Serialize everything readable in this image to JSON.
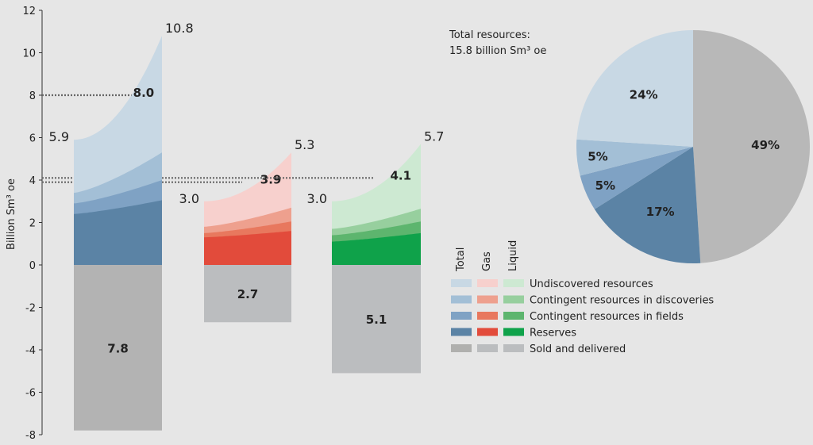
{
  "chart_data": [
    {
      "type": "area",
      "ylabel": "Billion Sm³ oe",
      "ylim": [
        -8,
        12
      ],
      "yticks": [
        12,
        10,
        8,
        6,
        4,
        2,
        0,
        -2,
        -4,
        -6,
        -8
      ],
      "grid": false,
      "groups": [
        {
          "name": "Total",
          "layers": [
            {
              "name": "Reserves",
              "start": 2.4,
              "end": 3.05,
              "color": "#5b83a5"
            },
            {
              "name": "Contingent resources in fields",
              "start": 2.9,
              "end": 4.0,
              "color": "#7fa2c4"
            },
            {
              "name": "Contingent resources in discoveries",
              "start": 3.4,
              "end": 5.3,
              "color": "#a3bfd6"
            },
            {
              "name": "Undiscovered resources",
              "start": 5.9,
              "end": 10.8,
              "color": "#c8d8e4"
            }
          ],
          "sold": {
            "name": "Sold and delivered",
            "value": -7.8,
            "color": "#b3b3b3"
          },
          "labels": {
            "low": "5.9",
            "high": "10.8",
            "expected": "8.0",
            "sold": "7.8"
          },
          "expected": 8.0
        },
        {
          "name": "Gas",
          "layers": [
            {
              "name": "Reserves",
              "start": 1.3,
              "end": 1.6,
              "color": "#e24b3b"
            },
            {
              "name": "Contingent resources in fields",
              "start": 1.5,
              "end": 2.05,
              "color": "#e8785e"
            },
            {
              "name": "Contingent resources in discoveries",
              "start": 1.8,
              "end": 2.7,
              "color": "#eea08e"
            },
            {
              "name": "Undiscovered resources",
              "start": 3.0,
              "end": 5.3,
              "color": "#f7d0cd"
            }
          ],
          "sold": {
            "name": "Sold and delivered",
            "value": -2.7,
            "color": "#bbbdbf"
          },
          "labels": {
            "low": "3.0",
            "high": "5.3",
            "expected": "3.9",
            "sold": "2.7"
          },
          "expected": 3.9
        },
        {
          "name": "Liquid",
          "layers": [
            {
              "name": "Reserves",
              "start": 1.1,
              "end": 1.5,
              "color": "#0fa24a"
            },
            {
              "name": "Contingent resources in fields",
              "start": 1.4,
              "end": 2.05,
              "color": "#5db56e"
            },
            {
              "name": "Contingent resources in discoveries",
              "start": 1.7,
              "end": 2.65,
              "color": "#97cf9e"
            },
            {
              "name": "Undiscovered resources",
              "start": 3.0,
              "end": 5.7,
              "color": "#cde9d2"
            }
          ],
          "sold": {
            "name": "Sold and delivered",
            "value": -5.1,
            "color": "#bbbdbf"
          },
          "labels": {
            "low": "3.0",
            "high": "5.7",
            "expected": "4.1",
            "sold": "5.1"
          },
          "expected": 4.1
        }
      ],
      "legend": {
        "columns": [
          "Total",
          "Gas",
          "Liquid"
        ],
        "entries": [
          "Undiscovered resources",
          "Contingent resources in discoveries",
          "Contingent resources in fields",
          "Reserves",
          "Sold and delivered"
        ],
        "swatches": [
          [
            "#c8d8e4",
            "#f7d0cd",
            "#cde9d2"
          ],
          [
            "#a3bfd6",
            "#eea08e",
            "#97cf9e"
          ],
          [
            "#7fa2c4",
            "#e8785e",
            "#5db56e"
          ],
          [
            "#5b83a5",
            "#e24b3b",
            "#0fa24a"
          ],
          [
            "#b0b0ae",
            "#bbbdbf",
            "#bbbdbf"
          ]
        ],
        "placement": "bottom-right"
      }
    },
    {
      "type": "pie",
      "title_line1": "Total resources:",
      "title_line2": "15.8 billion Sm³ oe",
      "slices": [
        {
          "name": "Sold and delivered",
          "value": 49,
          "label": "49%",
          "color": "#b8b8b8"
        },
        {
          "name": "Reserves",
          "value": 17,
          "label": "17%",
          "color": "#5b83a5"
        },
        {
          "name": "Contingent resources in fields",
          "value": 5,
          "label": "5%",
          "color": "#7fa2c4"
        },
        {
          "name": "Contingent resources in discoveries",
          "value": 5,
          "label": "5%",
          "color": "#a3bfd6"
        },
        {
          "name": "Undiscovered resources",
          "value": 24,
          "label": "24%",
          "color": "#c8d8e4"
        }
      ]
    }
  ]
}
